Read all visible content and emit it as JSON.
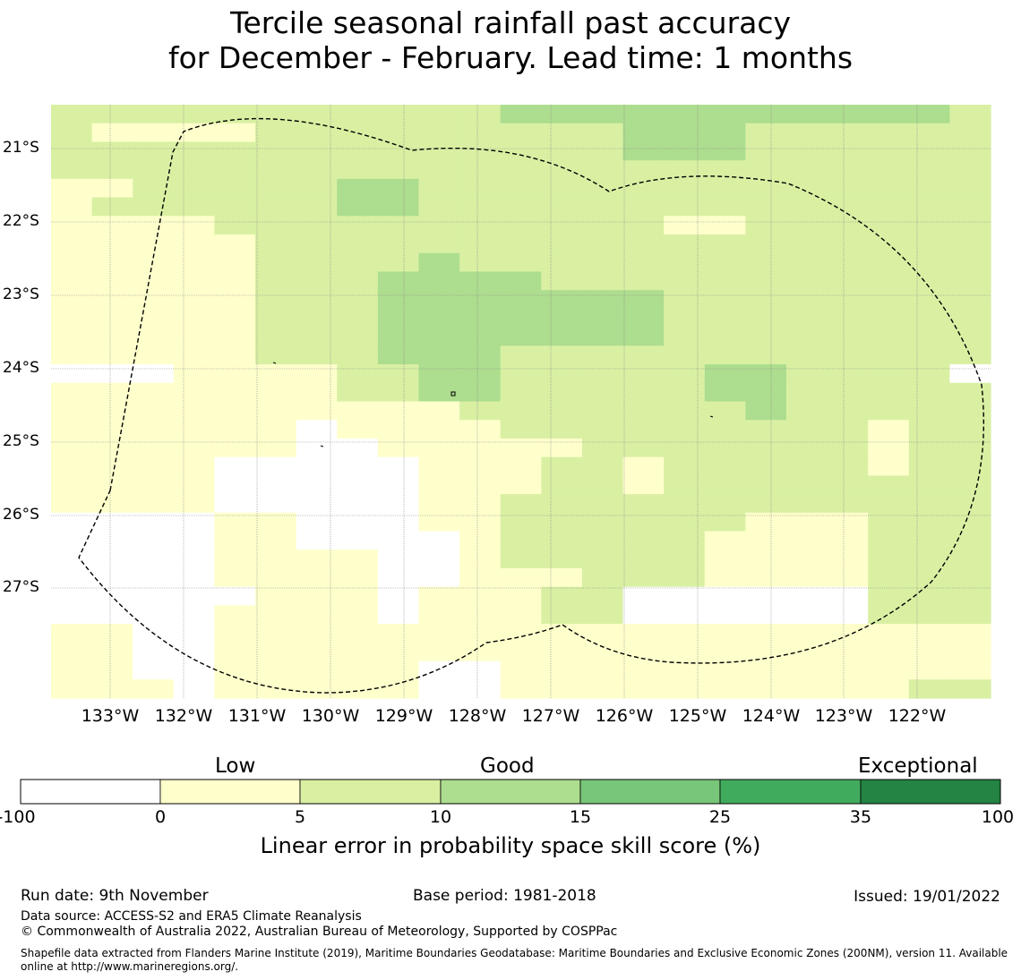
{
  "title": {
    "line1": "Tercile seasonal rainfall past accuracy",
    "line2": "for December - February. Lead time: 1 months"
  },
  "map": {
    "lon_labels": [
      "133°W",
      "132°W",
      "131°W",
      "130°W",
      "129°W",
      "128°W",
      "127°W",
      "126°W",
      "125°W",
      "124°W",
      "123°W",
      "122°W"
    ],
    "lat_labels": [
      "21°S",
      "22°S",
      "23°S",
      "24°S",
      "25°S",
      "26°S",
      "27°S"
    ],
    "category_colors": [
      "#ffffff",
      "#ffffcc",
      "#d9f0a3",
      "#addd8e",
      "#78c679",
      "#41ab5d",
      "#238443"
    ],
    "grid_rows": [
      "22222222222333333333332",
      "21111222222222333222222",
      "22222222222222333222222",
      "22222222222222222222222",
      "11222223322222222222222",
      "12222223322222222222222",
      "11112222222222211222222",
      "11111222222222222222222",
      "11111222232222222222222",
      "11111222333322222222222",
      "11111222333333322222222",
      "11111222333333322222222",
      "11111222333333322222222",
      "11111222333222222222222",
      "00011112233222223322220",
      "11111112233222223322222",
      "11111111112222222322222",
      "11111101111222222222122",
      "11111100111112222222122",
      "11110000011122122222122",
      "11110000011122122222222",
      "11110000011222222222222",
      "00001100011222222111222",
      "00001100001222221111222",
      "00001111001222221111222",
      "00001111001112221111222",
      "00000111011122000000222",
      "00001111011122000000222",
      "11001111111111111111111",
      "11001111111111111111111",
      "11001111100111111111111",
      "11101111100111111111122"
    ]
  },
  "colorbar": {
    "labels": [
      "Low",
      "Good",
      "Exceptional"
    ],
    "ticks": [
      "-100",
      "0",
      "5",
      "10",
      "15",
      "25",
      "35",
      "100"
    ],
    "title": "Linear error in probability space skill score (%)"
  },
  "footer": {
    "run_date": "Run date: 9th November",
    "base_period": "Base period: 1981-2018",
    "issued": "Issued: 19/01/2022",
    "data_source": "Data source: ACCESS-S2 and ERA5 Climate Reanalysis",
    "copyright": "© Commonwealth of Australia 2022, Australian Bureau of Meteorology, Supported by COSPPac",
    "shapefile": "Shapefile data extracted from Flanders Marine Institute (2019), Maritime Boundaries Geodatabase: Maritime Boundaries and Exclusive Economic Zones (200NM), version 11. Available online at http://www.marineregions.org/."
  }
}
